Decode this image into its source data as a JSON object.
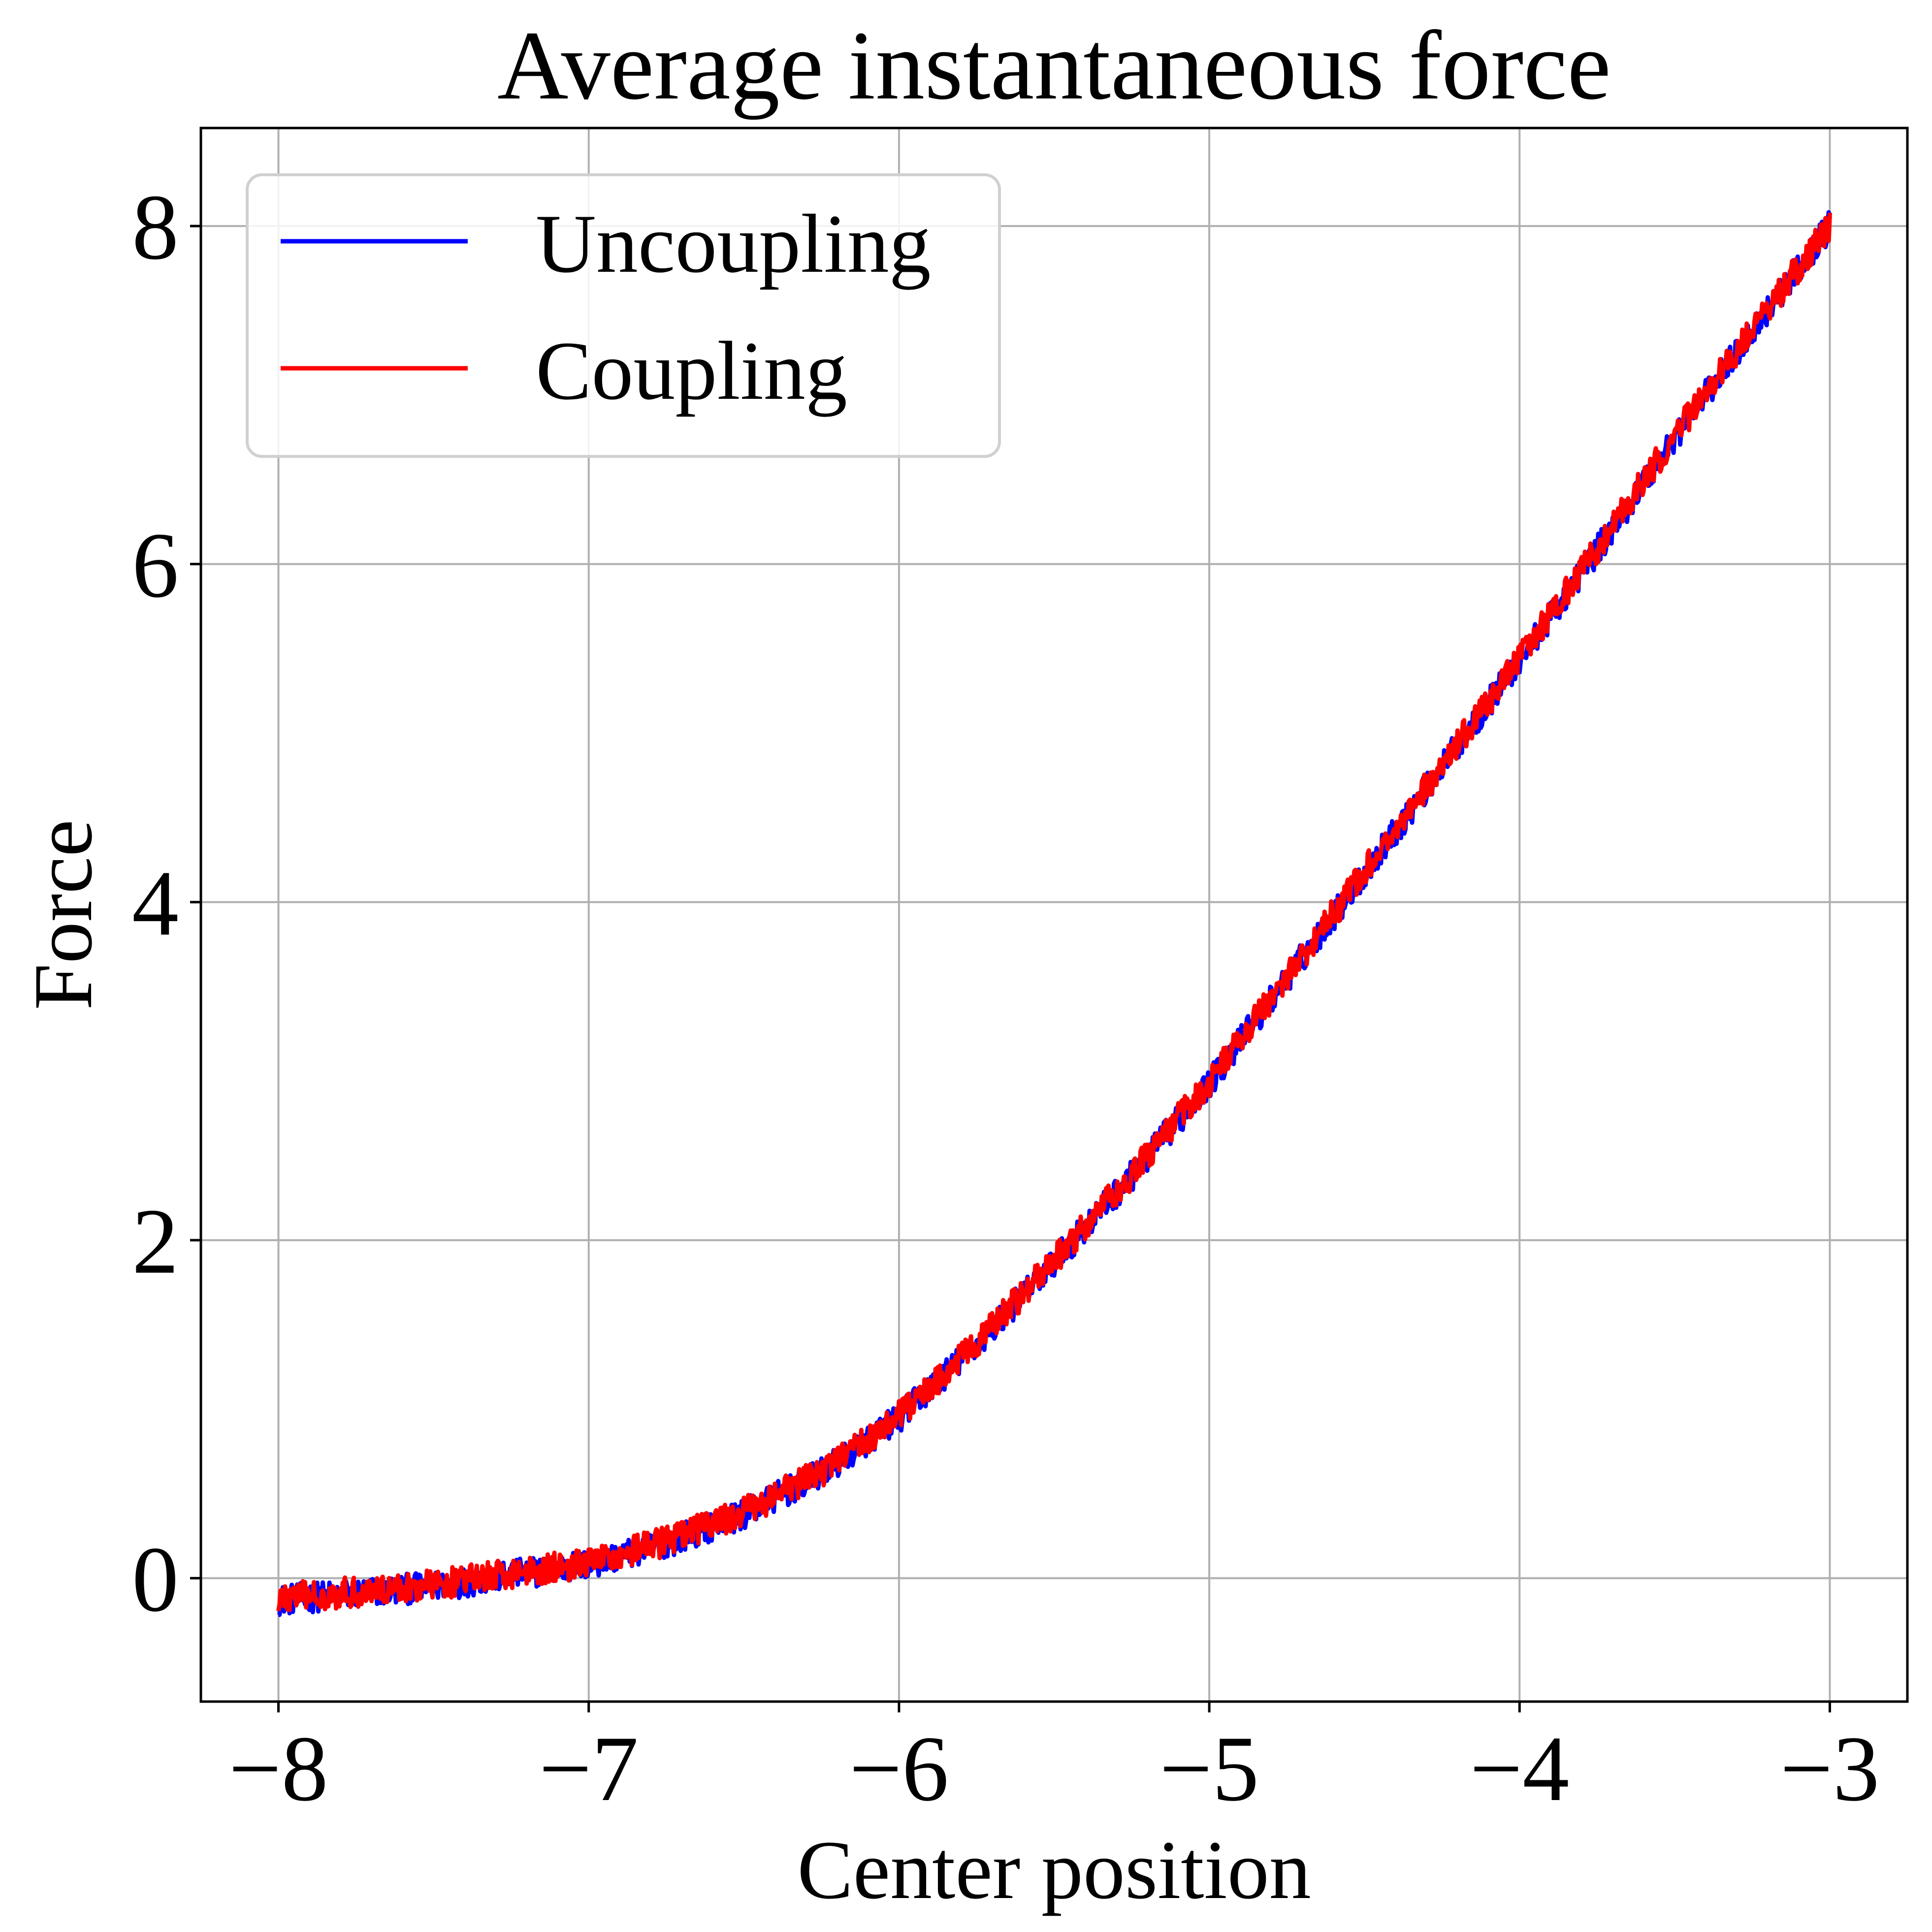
{
  "chart_data": {
    "type": "line",
    "title": "Average instantaneous force",
    "xlabel": "Center position",
    "ylabel": "Force",
    "xlim": [
      -8.25,
      -2.75
    ],
    "ylim": [
      -0.73,
      8.58
    ],
    "x_ticks": [
      -8,
      -7,
      -6,
      -5,
      -4,
      -3
    ],
    "x_tick_labels": [
      "−8",
      "−7",
      "−6",
      "−5",
      "−4",
      "−3"
    ],
    "y_ticks": [
      0,
      2,
      4,
      6,
      8
    ],
    "y_tick_labels": [
      "0",
      "2",
      "4",
      "6",
      "8"
    ],
    "grid": true,
    "legend_position": "upper-left",
    "series": [
      {
        "name": "Uncoupling",
        "color": "#0000ff",
        "x": [
          -8.0,
          -7.75,
          -7.5,
          -7.25,
          -7.0,
          -6.75,
          -6.5,
          -6.25,
          -6.0,
          -5.75,
          -5.5,
          -5.25,
          -5.0,
          -4.75,
          -4.5,
          -4.25,
          -4.0,
          -3.75,
          -3.5,
          -3.25,
          -3.0
        ],
        "y": [
          -0.13,
          -0.09,
          -0.05,
          0.02,
          0.08,
          0.21,
          0.38,
          0.62,
          0.95,
          1.38,
          1.87,
          2.38,
          2.93,
          3.55,
          4.17,
          4.8,
          5.43,
          6.08,
          6.75,
          7.38,
          8.0
        ]
      },
      {
        "name": "Coupling",
        "color": "#ff0000",
        "x": [
          -8.0,
          -7.75,
          -7.5,
          -7.25,
          -7.0,
          -6.75,
          -6.5,
          -6.25,
          -6.0,
          -5.75,
          -5.5,
          -5.25,
          -5.0,
          -4.75,
          -4.5,
          -4.25,
          -4.0,
          -3.75,
          -3.5,
          -3.25,
          -3.0
        ],
        "y": [
          -0.12,
          -0.08,
          -0.04,
          0.03,
          0.09,
          0.22,
          0.39,
          0.63,
          0.96,
          1.39,
          1.88,
          2.39,
          2.94,
          3.56,
          4.18,
          4.81,
          5.44,
          6.09,
          6.76,
          7.39,
          8.0
        ]
      }
    ]
  }
}
